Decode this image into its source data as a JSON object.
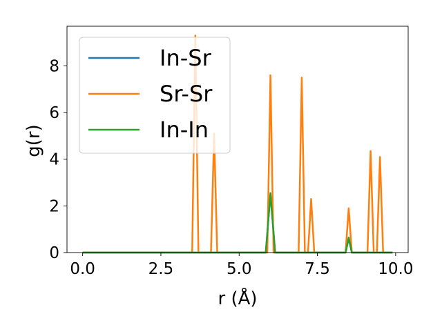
{
  "chart_data": {
    "type": "line",
    "xlabel": "r (Å)",
    "ylabel": "g(r)",
    "xlim": [
      -0.5,
      10.4
    ],
    "ylim": [
      0,
      9.7
    ],
    "x_ticks": [
      0.0,
      2.5,
      5.0,
      7.5,
      10.0
    ],
    "x_tick_labels": [
      "0.0",
      "2.5",
      "5.0",
      "7.5",
      "10.0"
    ],
    "y_ticks": [
      0,
      2,
      4,
      6,
      8
    ],
    "y_tick_labels": [
      "0",
      "2",
      "4",
      "6",
      "8"
    ],
    "grid": false,
    "legend_position": "upper-left",
    "series": [
      {
        "name": "In-Sr",
        "color": "#1f77b4",
        "x": [
          0.0,
          5.85,
          6.0,
          6.15,
          8.4,
          8.5,
          8.6,
          9.9
        ],
        "y": [
          0.0,
          0.0,
          2.5,
          0.0,
          0.0,
          0.6,
          0.0,
          0.0
        ]
      },
      {
        "name": "Sr-Sr",
        "color": "#ff7f0e",
        "x": [
          0.0,
          3.5,
          3.6,
          3.7,
          4.1,
          4.2,
          4.3,
          5.9,
          6.0,
          6.1,
          6.9,
          7.0,
          7.1,
          7.2,
          7.3,
          7.4,
          8.4,
          8.5,
          8.6,
          9.1,
          9.2,
          9.3,
          9.4,
          9.5,
          9.6,
          9.9
        ],
        "y": [
          0.0,
          0.0,
          9.3,
          0.0,
          0.0,
          5.1,
          0.0,
          0.0,
          7.6,
          0.0,
          0.0,
          7.5,
          0.0,
          0.0,
          2.3,
          0.0,
          0.0,
          1.9,
          0.0,
          0.0,
          4.35,
          0.0,
          0.0,
          4.1,
          0.0,
          0.0
        ]
      },
      {
        "name": "In-In",
        "color": "#2ca02c",
        "x": [
          0.0,
          5.85,
          6.0,
          6.15,
          8.4,
          8.5,
          8.6,
          9.9
        ],
        "y": [
          0.0,
          0.0,
          2.55,
          0.0,
          0.0,
          0.65,
          0.0,
          0.0
        ]
      }
    ]
  }
}
